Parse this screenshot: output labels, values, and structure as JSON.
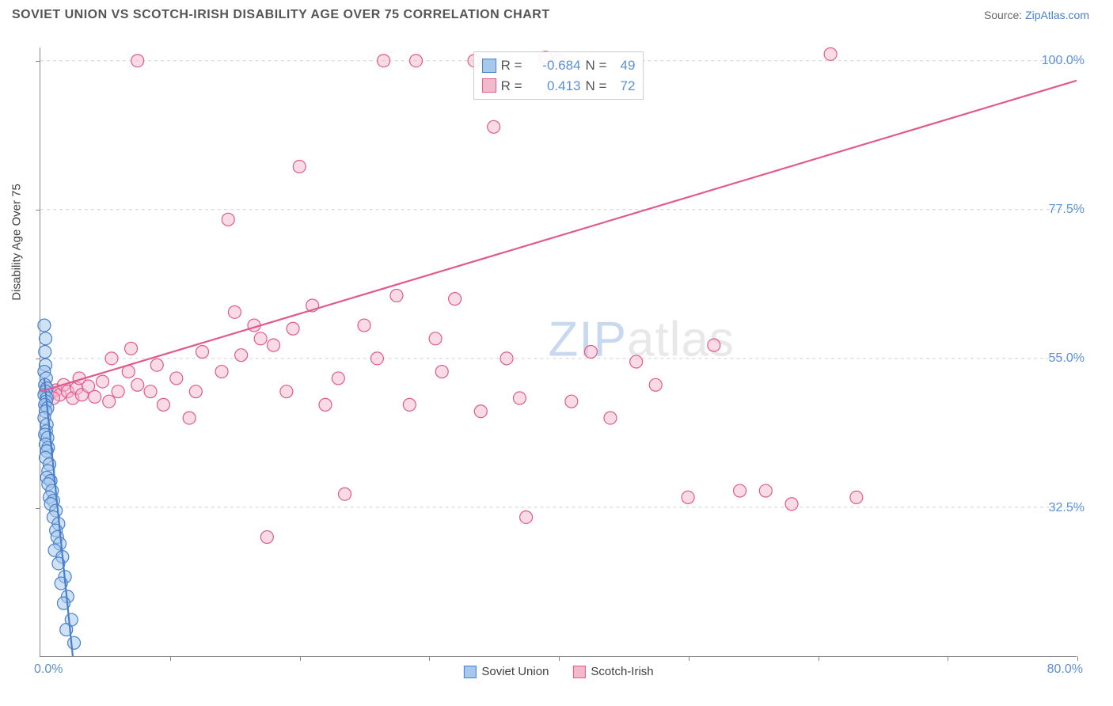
{
  "title": "SOVIET UNION VS SCOTCH-IRISH DISABILITY AGE OVER 75 CORRELATION CHART",
  "source_prefix": "Source: ",
  "source_link": "ZipAtlas.com",
  "watermark_z": "ZIP",
  "watermark_rest": "atlas",
  "y_axis_title": "Disability Age Over 75",
  "x_min_label": "0.0%",
  "x_max_label": "80.0%",
  "chart": {
    "type": "scatter_correlation",
    "xlim": [
      0,
      80
    ],
    "ylim": [
      10,
      102
    ],
    "background_color": "#ffffff",
    "grid_color": "#d0d0d0",
    "axis_color": "#888888",
    "tick_label_color": "#5b8fd6",
    "y_gridlines": [
      32.5,
      55.0,
      77.5,
      100.0
    ],
    "y_grid_labels": [
      "32.5%",
      "55.0%",
      "77.5%",
      "100.0%"
    ],
    "x_ticks": [
      10,
      20,
      30,
      40,
      50,
      60,
      70,
      80
    ],
    "marker_radius": 8,
    "marker_stroke_width": 1.2,
    "line_width": 2.2
  },
  "series": [
    {
      "name": "Soviet Union",
      "fill": "#a6c8ec",
      "fill_opacity": 0.55,
      "stroke": "#4a7fc9",
      "r_label": "R =",
      "r_value": "-0.684",
      "n_label": "N =",
      "n_value": "49",
      "trend": {
        "x1": 0.3,
        "y1": 52,
        "x2": 2.5,
        "y2": 10
      },
      "points": [
        [
          0.3,
          60
        ],
        [
          0.4,
          58
        ],
        [
          0.35,
          56
        ],
        [
          0.4,
          54
        ],
        [
          0.3,
          53
        ],
        [
          0.45,
          52
        ],
        [
          0.35,
          51
        ],
        [
          0.5,
          50.5
        ],
        [
          0.4,
          50
        ],
        [
          0.3,
          49.5
        ],
        [
          0.5,
          49
        ],
        [
          0.45,
          48.5
        ],
        [
          0.35,
          48
        ],
        [
          0.55,
          47.5
        ],
        [
          0.4,
          47
        ],
        [
          0.3,
          46
        ],
        [
          0.5,
          45
        ],
        [
          0.45,
          44
        ],
        [
          0.35,
          43.5
        ],
        [
          0.55,
          43
        ],
        [
          0.4,
          42
        ],
        [
          0.6,
          41.5
        ],
        [
          0.5,
          41
        ],
        [
          0.4,
          40
        ],
        [
          0.7,
          39
        ],
        [
          0.6,
          38
        ],
        [
          0.5,
          37
        ],
        [
          0.8,
          36.5
        ],
        [
          0.6,
          36
        ],
        [
          0.9,
          35
        ],
        [
          0.7,
          34
        ],
        [
          1.0,
          33.5
        ],
        [
          0.8,
          33
        ],
        [
          1.2,
          32
        ],
        [
          1.0,
          31
        ],
        [
          1.4,
          30
        ],
        [
          1.2,
          29
        ],
        [
          1.3,
          28
        ],
        [
          1.5,
          27
        ],
        [
          1.1,
          26
        ],
        [
          1.7,
          25
        ],
        [
          1.4,
          24
        ],
        [
          1.9,
          22
        ],
        [
          1.6,
          21
        ],
        [
          2.1,
          19
        ],
        [
          1.8,
          18
        ],
        [
          2.4,
          15.5
        ],
        [
          2.0,
          14
        ],
        [
          2.6,
          12
        ]
      ]
    },
    {
      "name": "Scotch-Irish",
      "fill": "#f4b8cc",
      "fill_opacity": 0.5,
      "stroke": "#e05a8c",
      "r_label": "R =",
      "r_value": "0.413",
      "n_label": "N =",
      "n_value": "72",
      "trend": {
        "x1": 0,
        "y1": 50,
        "x2": 80,
        "y2": 97
      },
      "points": [
        [
          0.5,
          50.5
        ],
        [
          0.8,
          49.8
        ],
        [
          1.2,
          50.2
        ],
        [
          1.5,
          49.5
        ],
        [
          1.8,
          51
        ],
        [
          2.1,
          50
        ],
        [
          2.5,
          49
        ],
        [
          2.8,
          50.5
        ],
        [
          3.2,
          49.5
        ],
        [
          3.7,
          50.8
        ],
        [
          4.2,
          49.2
        ],
        [
          4.8,
          51.5
        ],
        [
          5.3,
          48.5
        ],
        [
          6.0,
          50
        ],
        [
          6.8,
          53
        ],
        [
          7.5,
          51
        ],
        [
          5.5,
          55
        ],
        [
          7.0,
          56.5
        ],
        [
          9.0,
          54
        ],
        [
          10.5,
          52
        ],
        [
          12.0,
          50
        ],
        [
          11.5,
          46
        ],
        [
          14.0,
          53
        ],
        [
          15.5,
          55.5
        ],
        [
          17.0,
          58
        ],
        [
          14.5,
          76
        ],
        [
          15.0,
          62
        ],
        [
          16.5,
          60
        ],
        [
          18.0,
          57
        ],
        [
          19.5,
          59.5
        ],
        [
          21.0,
          63
        ],
        [
          17.5,
          28
        ],
        [
          20.0,
          84
        ],
        [
          22.0,
          48
        ],
        [
          23.5,
          34.5
        ],
        [
          25.0,
          60
        ],
        [
          26.5,
          100
        ],
        [
          27.5,
          64.5
        ],
        [
          29.0,
          100
        ],
        [
          28.5,
          48
        ],
        [
          30.5,
          58
        ],
        [
          32.0,
          64
        ],
        [
          33.5,
          100
        ],
        [
          35.0,
          90
        ],
        [
          31.0,
          53
        ],
        [
          34.0,
          47
        ],
        [
          36.0,
          55
        ],
        [
          37.5,
          31
        ],
        [
          39.0,
          100.5
        ],
        [
          40.0,
          100
        ],
        [
          41.0,
          48.5
        ],
        [
          42.5,
          56
        ],
        [
          44.0,
          46
        ],
        [
          46.0,
          54.5
        ],
        [
          47.5,
          51
        ],
        [
          7.5,
          100
        ],
        [
          50.0,
          34
        ],
        [
          52.0,
          57
        ],
        [
          54.0,
          35
        ],
        [
          56.0,
          35
        ],
        [
          58.0,
          33
        ],
        [
          61.0,
          101
        ],
        [
          63.0,
          34
        ],
        [
          23.0,
          52
        ],
        [
          12.5,
          56
        ],
        [
          8.5,
          50
        ],
        [
          3.0,
          52
        ],
        [
          1.0,
          49
        ],
        [
          19.0,
          50
        ],
        [
          37.0,
          49
        ],
        [
          26.0,
          55
        ],
        [
          9.5,
          48
        ]
      ]
    }
  ],
  "legend_bottom": [
    {
      "label": "Soviet Union",
      "fill": "#a6c8ec",
      "stroke": "#4a7fc9"
    },
    {
      "label": "Scotch-Irish",
      "fill": "#f4b8cc",
      "stroke": "#e05a8c"
    }
  ]
}
